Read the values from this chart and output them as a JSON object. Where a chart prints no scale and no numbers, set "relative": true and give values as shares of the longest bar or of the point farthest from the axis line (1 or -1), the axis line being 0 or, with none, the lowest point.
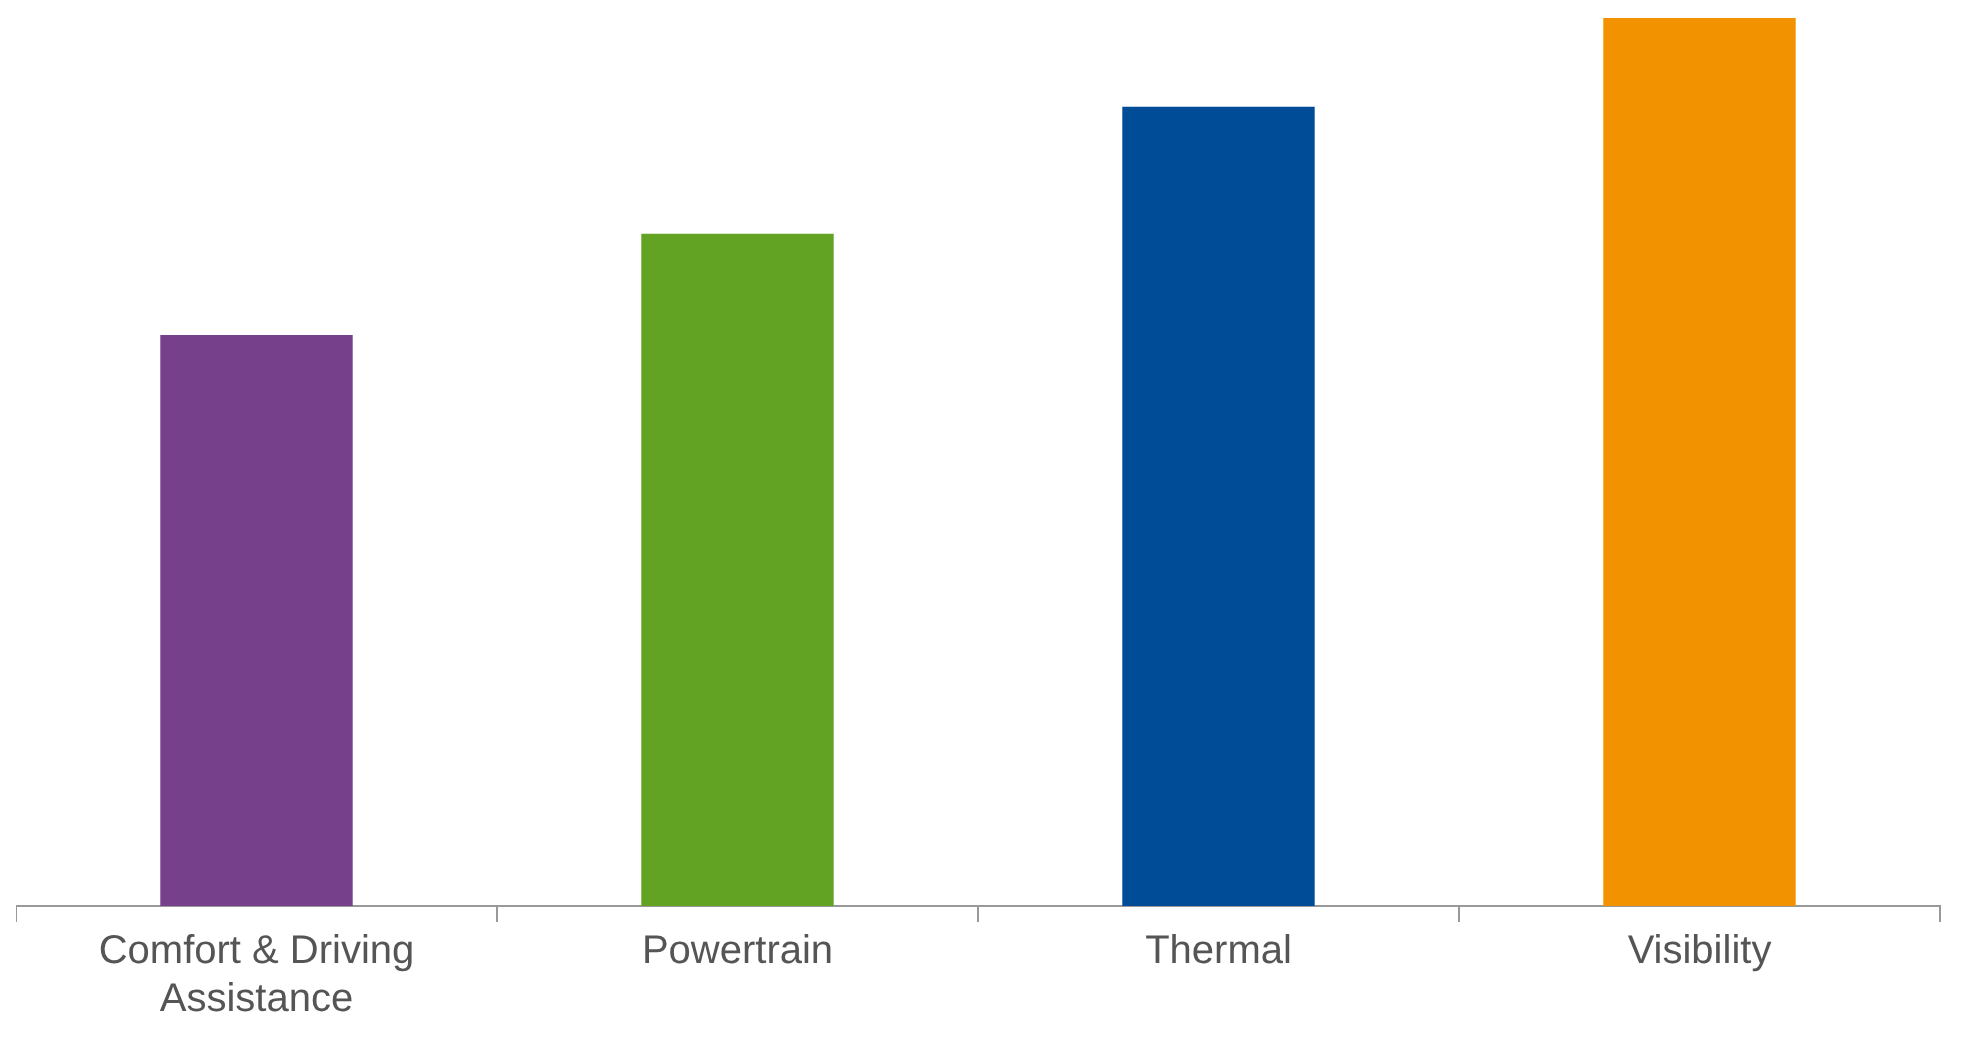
{
  "chart_data": {
    "type": "bar",
    "relative": true,
    "categories": [
      "Comfort & Driving Assistance",
      "Powertrain",
      "Thermal",
      "Visibility"
    ],
    "values": [
      0.643,
      0.757,
      0.9,
      1
    ],
    "colors": [
      "#77408b",
      "#63a323",
      "#004c97",
      "#f39200"
    ],
    "grid": false,
    "legend": false
  }
}
